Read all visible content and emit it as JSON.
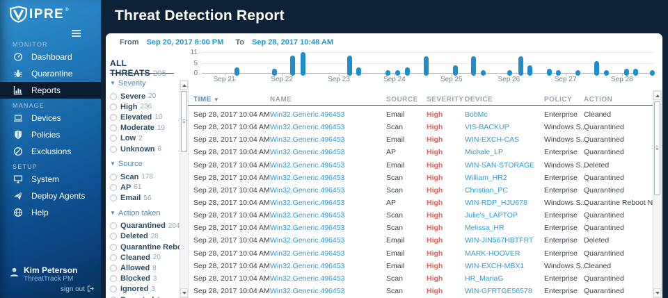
{
  "colors": {
    "background_navy": "#0d2137",
    "sidebar_blue_top": "#3190cf",
    "sidebar_blue_bottom": "#083258",
    "sidebar_active": "#0a1c2f",
    "accent_bar_blue": "#1d8dcb",
    "link_blue": "#2e9ad4",
    "date_link_blue": "#1899d5",
    "severity_high_red": "#e4605c",
    "filter_header_blue": "#4e87b2",
    "table_header_gray": "#98a4af"
  },
  "sidebar": {
    "logo": "VIPRE",
    "logo_mark": "®",
    "sections": [
      {
        "label": "MONITOR",
        "items": [
          {
            "icon": "gauge-icon",
            "label": "Dashboard",
            "active": false
          },
          {
            "icon": "bug-icon",
            "label": "Quarantine",
            "active": false
          },
          {
            "icon": "bar-chart-icon",
            "label": "Reports",
            "active": true
          }
        ]
      },
      {
        "label": "MANAGE",
        "items": [
          {
            "icon": "laptop-icon",
            "label": "Devices",
            "active": false
          },
          {
            "icon": "shield-icon",
            "label": "Policies",
            "active": false
          },
          {
            "icon": "no-entry-icon",
            "label": "Exclusions",
            "active": false
          }
        ]
      },
      {
        "label": "SETUP",
        "items": [
          {
            "icon": "monitor-icon",
            "label": "System",
            "active": false
          },
          {
            "icon": "paper-plane-icon",
            "label": "Deploy Agents",
            "active": false
          },
          {
            "icon": "globe-icon",
            "label": "Help",
            "active": false
          }
        ]
      }
    ],
    "user": {
      "name": "Kim Peterson",
      "role": "ThreatTrack PM",
      "signout_label": "sign out"
    }
  },
  "header": {
    "title": "Threat Detection Report"
  },
  "daterange": {
    "from_label": "From",
    "from_value": "Sep 20, 2017 8:00 PM",
    "to_label": "To",
    "to_value": "Sep 28, 2017 10:48 AM"
  },
  "filters": {
    "title": "ALL THREATS",
    "total": "295",
    "groups": [
      {
        "name": "Severity",
        "items": [
          {
            "label": "Severe",
            "count": "20"
          },
          {
            "label": "High",
            "count": "236"
          },
          {
            "label": "Elevated",
            "count": "10"
          },
          {
            "label": "Moderate",
            "count": "19"
          },
          {
            "label": "Low",
            "count": "2"
          },
          {
            "label": "Unknown",
            "count": "8"
          }
        ]
      },
      {
        "name": "Source",
        "items": [
          {
            "label": "Scan",
            "count": "178"
          },
          {
            "label": "AP",
            "count": "61"
          },
          {
            "label": "Email",
            "count": "56"
          }
        ]
      },
      {
        "name": "Action taken",
        "items": [
          {
            "label": "Quarantined",
            "count": "204"
          },
          {
            "label": "Deleted",
            "count": "28"
          },
          {
            "label": "Quarantine Rebo...",
            "count": "28"
          },
          {
            "label": "Cleaned",
            "count": "20"
          },
          {
            "label": "Allowed",
            "count": "8"
          },
          {
            "label": "Blocked",
            "count": "3"
          },
          {
            "label": "Ignored",
            "count": "3"
          },
          {
            "label": "Reported",
            "count": "1"
          }
        ]
      }
    ]
  },
  "chart_data": {
    "type": "bar",
    "ylabel": "",
    "xlabel": "",
    "ylim": [
      0,
      11
    ],
    "y_ticks": [
      0,
      5,
      11
    ],
    "grid": true,
    "x_ticks": [
      {
        "pos": 0.05,
        "label": "Sep 21"
      },
      {
        "pos": 0.177,
        "label": "Sep 22"
      },
      {
        "pos": 0.303,
        "label": "Sep 23"
      },
      {
        "pos": 0.426,
        "label": "Sep 24"
      },
      {
        "pos": 0.552,
        "label": "Sep 25"
      },
      {
        "pos": 0.679,
        "label": "Sep 26"
      },
      {
        "pos": 0.804,
        "label": "Sep 27"
      },
      {
        "pos": 0.929,
        "label": "Sep 28"
      }
    ],
    "points": [
      {
        "pos": 0.078,
        "count": 2
      },
      {
        "pos": 0.161,
        "count": 1
      },
      {
        "pos": 0.201,
        "count": 8.5
      },
      {
        "pos": 0.224,
        "count": 10.5
      },
      {
        "pos": 0.327,
        "count": 8.5
      },
      {
        "pos": 0.347,
        "count": 2
      },
      {
        "pos": 0.412,
        "count": 0.5
      },
      {
        "pos": 0.433,
        "count": 0.5
      },
      {
        "pos": 0.455,
        "count": 2
      },
      {
        "pos": 0.496,
        "count": 8
      },
      {
        "pos": 0.561,
        "count": 3
      },
      {
        "pos": 0.601,
        "count": 8
      },
      {
        "pos": 0.623,
        "count": 0.5
      },
      {
        "pos": 0.681,
        "count": 0.5
      },
      {
        "pos": 0.705,
        "count": 8
      },
      {
        "pos": 0.725,
        "count": 3
      },
      {
        "pos": 0.768,
        "count": 1
      },
      {
        "pos": 0.789,
        "count": 0.5
      },
      {
        "pos": 0.831,
        "count": 0.5
      },
      {
        "pos": 0.873,
        "count": 5.5
      },
      {
        "pos": 0.894,
        "count": 0.5
      },
      {
        "pos": 0.939,
        "count": 1
      },
      {
        "pos": 0.959,
        "count": 1
      },
      {
        "pos": 0.996,
        "count": 0.5
      }
    ]
  },
  "table": {
    "columns": [
      "TIME",
      "NAME",
      "SOURCE",
      "SEVERITY",
      "DEVICE",
      "POLICY",
      "ACTION"
    ],
    "sorted_column": "TIME",
    "rows": [
      {
        "time": "Sep 28, 2017 10:04 AM",
        "name": "Win32.Generic.496453",
        "source": "Email",
        "severity": "High",
        "device": "BobMc",
        "policy": "Enterprise",
        "action": "Cleaned"
      },
      {
        "time": "Sep 28, 2017 10:04 AM",
        "name": "Win32.Generic.496453",
        "source": "Scan",
        "severity": "High",
        "device": "VIS-BACKUP",
        "policy": "Windows S...",
        "action": "Quarantined"
      },
      {
        "time": "Sep 28, 2017 10:04 AM",
        "name": "Win32.Generic.496453",
        "source": "Email",
        "severity": "High",
        "device": "WIN-EXCH-CAS",
        "policy": "Windows S...",
        "action": "Quarantined"
      },
      {
        "time": "Sep 28, 2017 10:04 AM",
        "name": "Win32.Generic.496453",
        "source": "AP",
        "severity": "High",
        "device": "Michale_LP",
        "policy": "Enterprise",
        "action": "Quarantined"
      },
      {
        "time": "Sep 28, 2017 10:04 AM",
        "name": "Win32.Generic.496453",
        "source": "Email",
        "severity": "High",
        "device": "WIN-SAN-STORAGE",
        "policy": "Windows S...",
        "action": "Deleted"
      },
      {
        "time": "Sep 28, 2017 10:04 AM",
        "name": "Win32.Generic.496453",
        "source": "Scan",
        "severity": "High",
        "device": "William_HR2",
        "policy": "Enterprise",
        "action": "Quarantined"
      },
      {
        "time": "Sep 28, 2017 10:04 AM",
        "name": "Win32.Generic.496453",
        "source": "Scan",
        "severity": "High",
        "device": "Christian_PC",
        "policy": "Enterprise",
        "action": "Quarantined"
      },
      {
        "time": "Sep 28, 2017 10:04 AM",
        "name": "Win32.Generic.496453",
        "source": "AP",
        "severity": "High",
        "device": "WIN-RDP_HJU678",
        "policy": "Windows S...",
        "action": "Quarantine Reboot Needed"
      },
      {
        "time": "Sep 28, 2017 10:04 AM",
        "name": "Win32.Generic.496453",
        "source": "Scan",
        "severity": "High",
        "device": "Julie's_LAPTOP",
        "policy": "Enterprise",
        "action": "Quarantined"
      },
      {
        "time": "Sep 28, 2017 10:04 AM",
        "name": "Win32.Generic.496453",
        "source": "Scan",
        "severity": "High",
        "device": "Melissa_HR",
        "policy": "Enterprise",
        "action": "Quarantined"
      },
      {
        "time": "Sep 28, 2017 10:04 AM",
        "name": "Win32.Generic.496453",
        "source": "Email",
        "severity": "High",
        "device": "WIN-JIN567HBTFRT",
        "policy": "Enterprise",
        "action": "Deleted"
      },
      {
        "time": "Sep 28, 2017 10:04 AM",
        "name": "Win32.Generic.496453",
        "source": "Email",
        "severity": "High",
        "device": "MARK-HOOVER",
        "policy": "Enterprise",
        "action": "Quarantined"
      },
      {
        "time": "Sep 28, 2017 10:04 AM",
        "name": "Win32.Generic.496453",
        "source": "Email",
        "severity": "High",
        "device": "WIN-EXCH-MBX1",
        "policy": "Windows S...",
        "action": "Cleaned"
      },
      {
        "time": "Sep 28, 2017 10:04 AM",
        "name": "Win32.Generic.496453",
        "source": "Scan",
        "severity": "High",
        "device": "HR_MariaG",
        "policy": "Enterprise",
        "action": "Quarantined"
      },
      {
        "time": "Sep 28, 2017 10:04 AM",
        "name": "Win32.Generic.496453",
        "source": "Scan",
        "severity": "High",
        "device": "WIN-GFRTGE56578",
        "policy": "Enterprise",
        "action": "Quarantined"
      }
    ]
  }
}
